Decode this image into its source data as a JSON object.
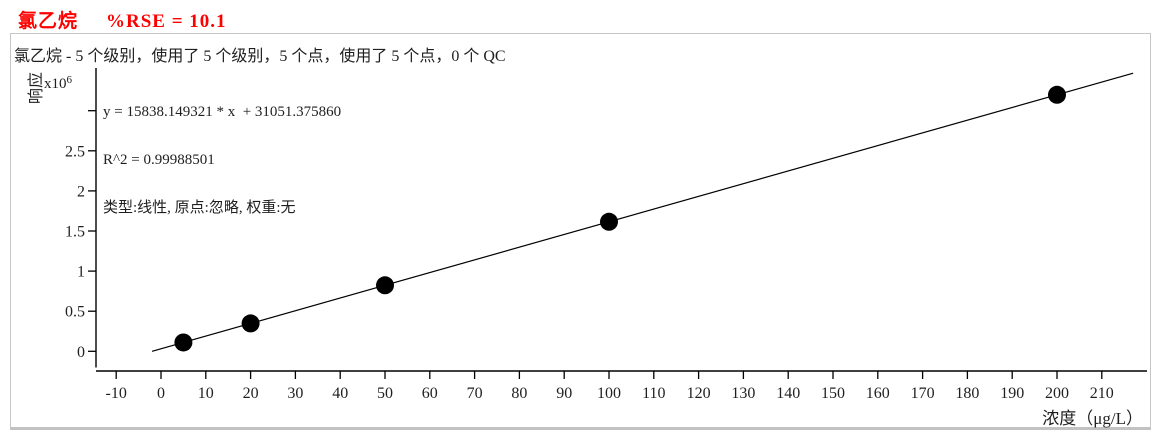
{
  "title": {
    "compound": "氯乙烷",
    "rse": "%RSE = 10.1"
  },
  "subtitle": "氯乙烷 - 5 个级别，使用了 5 个级别，5 个点，使用了 5 个点，0 个 QC",
  "equation": {
    "line1": "y = 15838.149321 * x  + 31051.375860",
    "line2": "R^2 = 0.99988501",
    "line3": "类型:线性, 原点:忽略, 权重:无"
  },
  "axes": {
    "y_label": "响应",
    "y_scale_mantissa": "x10",
    "y_scale_exponent": "6",
    "x_label": "浓度（μg/L）"
  },
  "colors": {
    "title_red": "#ff0000",
    "text_dark": "#1f1f1f",
    "axis_black": "#000000",
    "point_black": "#000000",
    "panel_border": "#c6c6c6"
  },
  "chart_data": {
    "type": "scatter",
    "title": "氯乙烷  %RSE = 10.1",
    "xlabel": "浓度（μg/L）",
    "ylabel": "响应 x10^6",
    "x": [
      5,
      20,
      50,
      100,
      200
    ],
    "y": [
      110242,
      347814,
      822959,
      1614866,
      3198681
    ],
    "fit": {
      "equation": "y = 15838.149321 * x + 31051.375860",
      "slope": 15838.149321,
      "intercept": 31051.37586,
      "r_squared": 0.99988501,
      "curve_type": "线性",
      "origin": "忽略",
      "weight": "无",
      "line_x_range": [
        -2,
        217
      ]
    },
    "x_ticks": [
      -10,
      0,
      10,
      20,
      30,
      40,
      50,
      60,
      70,
      80,
      90,
      100,
      110,
      120,
      130,
      140,
      150,
      160,
      170,
      180,
      190,
      200,
      210
    ],
    "y_ticks": [
      {
        "value": 0,
        "label": "0"
      },
      {
        "value": 0.5,
        "label": "0.5"
      },
      {
        "value": 1,
        "label": "1"
      },
      {
        "value": 1.5,
        "label": "1.5"
      },
      {
        "value": 2,
        "label": "2"
      },
      {
        "value": 2.5,
        "label": "2.5"
      },
      {
        "value": 3,
        "label": ""
      }
    ],
    "y_unit_multiplier": 1000000,
    "xlim": [
      -14.5,
      220
    ],
    "ylim": [
      -250000,
      3780000
    ],
    "grid": false,
    "legend": "none"
  }
}
